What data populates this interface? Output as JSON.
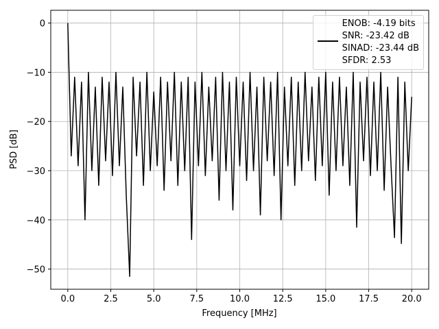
{
  "chart_data": {
    "type": "line",
    "xlabel": "Frequency [MHz]",
    "ylabel": "PSD [dB]",
    "x": [
      0,
      0.2,
      0.4,
      0.6,
      0.8,
      1.0,
      1.2,
      1.4,
      1.6,
      1.8,
      2.0,
      2.2,
      2.4,
      2.6,
      2.8,
      3.0,
      3.2,
      3.4,
      3.6,
      3.8,
      4.0,
      4.2,
      4.4,
      4.6,
      4.8,
      5.0,
      5.2,
      5.4,
      5.6,
      5.8,
      6.0,
      6.2,
      6.4,
      6.6,
      6.8,
      7.0,
      7.2,
      7.4,
      7.6,
      7.8,
      8.0,
      8.2,
      8.4,
      8.6,
      8.8,
      9.0,
      9.2,
      9.4,
      9.6,
      9.8,
      10.0,
      10.2,
      10.4,
      10.6,
      10.8,
      11.0,
      11.2,
      11.4,
      11.6,
      11.8,
      12.0,
      12.2,
      12.4,
      12.6,
      12.8,
      13.0,
      13.2,
      13.4,
      13.6,
      13.8,
      14.0,
      14.2,
      14.4,
      14.6,
      14.8,
      15.0,
      15.2,
      15.4,
      15.6,
      15.8,
      16.0,
      16.2,
      16.4,
      16.6,
      16.8,
      17.0,
      17.2,
      17.4,
      17.6,
      17.8,
      18.0,
      18.2,
      18.4,
      18.6,
      18.8,
      19.0,
      19.2,
      19.4,
      19.6,
      19.8,
      20.0
    ],
    "series": [
      {
        "name": "ENOB: -4.19 bits\nSNR: -23.42 dB\nSINAD: -23.44 dB\nSFDR: 2.53",
        "color": "#000000",
        "values": [
          0,
          -27,
          -11,
          -29,
          -12,
          -40,
          -10,
          -30,
          -13,
          -33,
          -11,
          -28,
          -12,
          -31,
          -10,
          -29,
          -13,
          -35,
          -51.5,
          -11,
          -27,
          -12,
          -33,
          -10,
          -30,
          -14,
          -29,
          -11,
          -34,
          -12,
          -28,
          -10,
          -33,
          -12,
          -30,
          -11,
          -44,
          -12,
          -29,
          -10,
          -31,
          -13,
          -28,
          -11,
          -36,
          -10,
          -30,
          -12,
          -38,
          -11,
          -29,
          -12,
          -32,
          -10,
          -30,
          -13,
          -39,
          -11,
          -28,
          -12,
          -31,
          -10,
          -40,
          -13,
          -29,
          -11,
          -33,
          -12,
          -30,
          -10,
          -28,
          -13,
          -32,
          -11,
          -29,
          -10,
          -35,
          -12,
          -30,
          -11,
          -29,
          -13,
          -33,
          -10,
          -41.5,
          -12,
          -28,
          -11,
          -31,
          -12,
          -30,
          -10,
          -34,
          -13,
          -29,
          -43.6,
          -11,
          -44.8,
          -12,
          -30,
          -15
        ]
      }
    ],
    "xlim": [
      -0.99,
      20.99
    ],
    "xticks": [
      {
        "value": 0,
        "label": "0.0"
      },
      2.5,
      {
        "value": 5,
        "label": "5.0"
      },
      7.5,
      {
        "value": 10,
        "label": "10.0"
      },
      12.5,
      {
        "value": 15,
        "label": "15.0"
      },
      17.5,
      {
        "value": 20,
        "label": "20.0"
      }
    ],
    "ylim": [
      -54.1,
      2.6
    ],
    "yticks": [
      0,
      {
        "value": -10,
        "label": "−10"
      },
      {
        "value": -20,
        "label": "−20"
      },
      {
        "value": -30,
        "label": "−30"
      },
      {
        "value": -40,
        "label": "−40"
      },
      {
        "value": -50,
        "label": "−50"
      }
    ],
    "grid": true,
    "legend": "upper right"
  }
}
